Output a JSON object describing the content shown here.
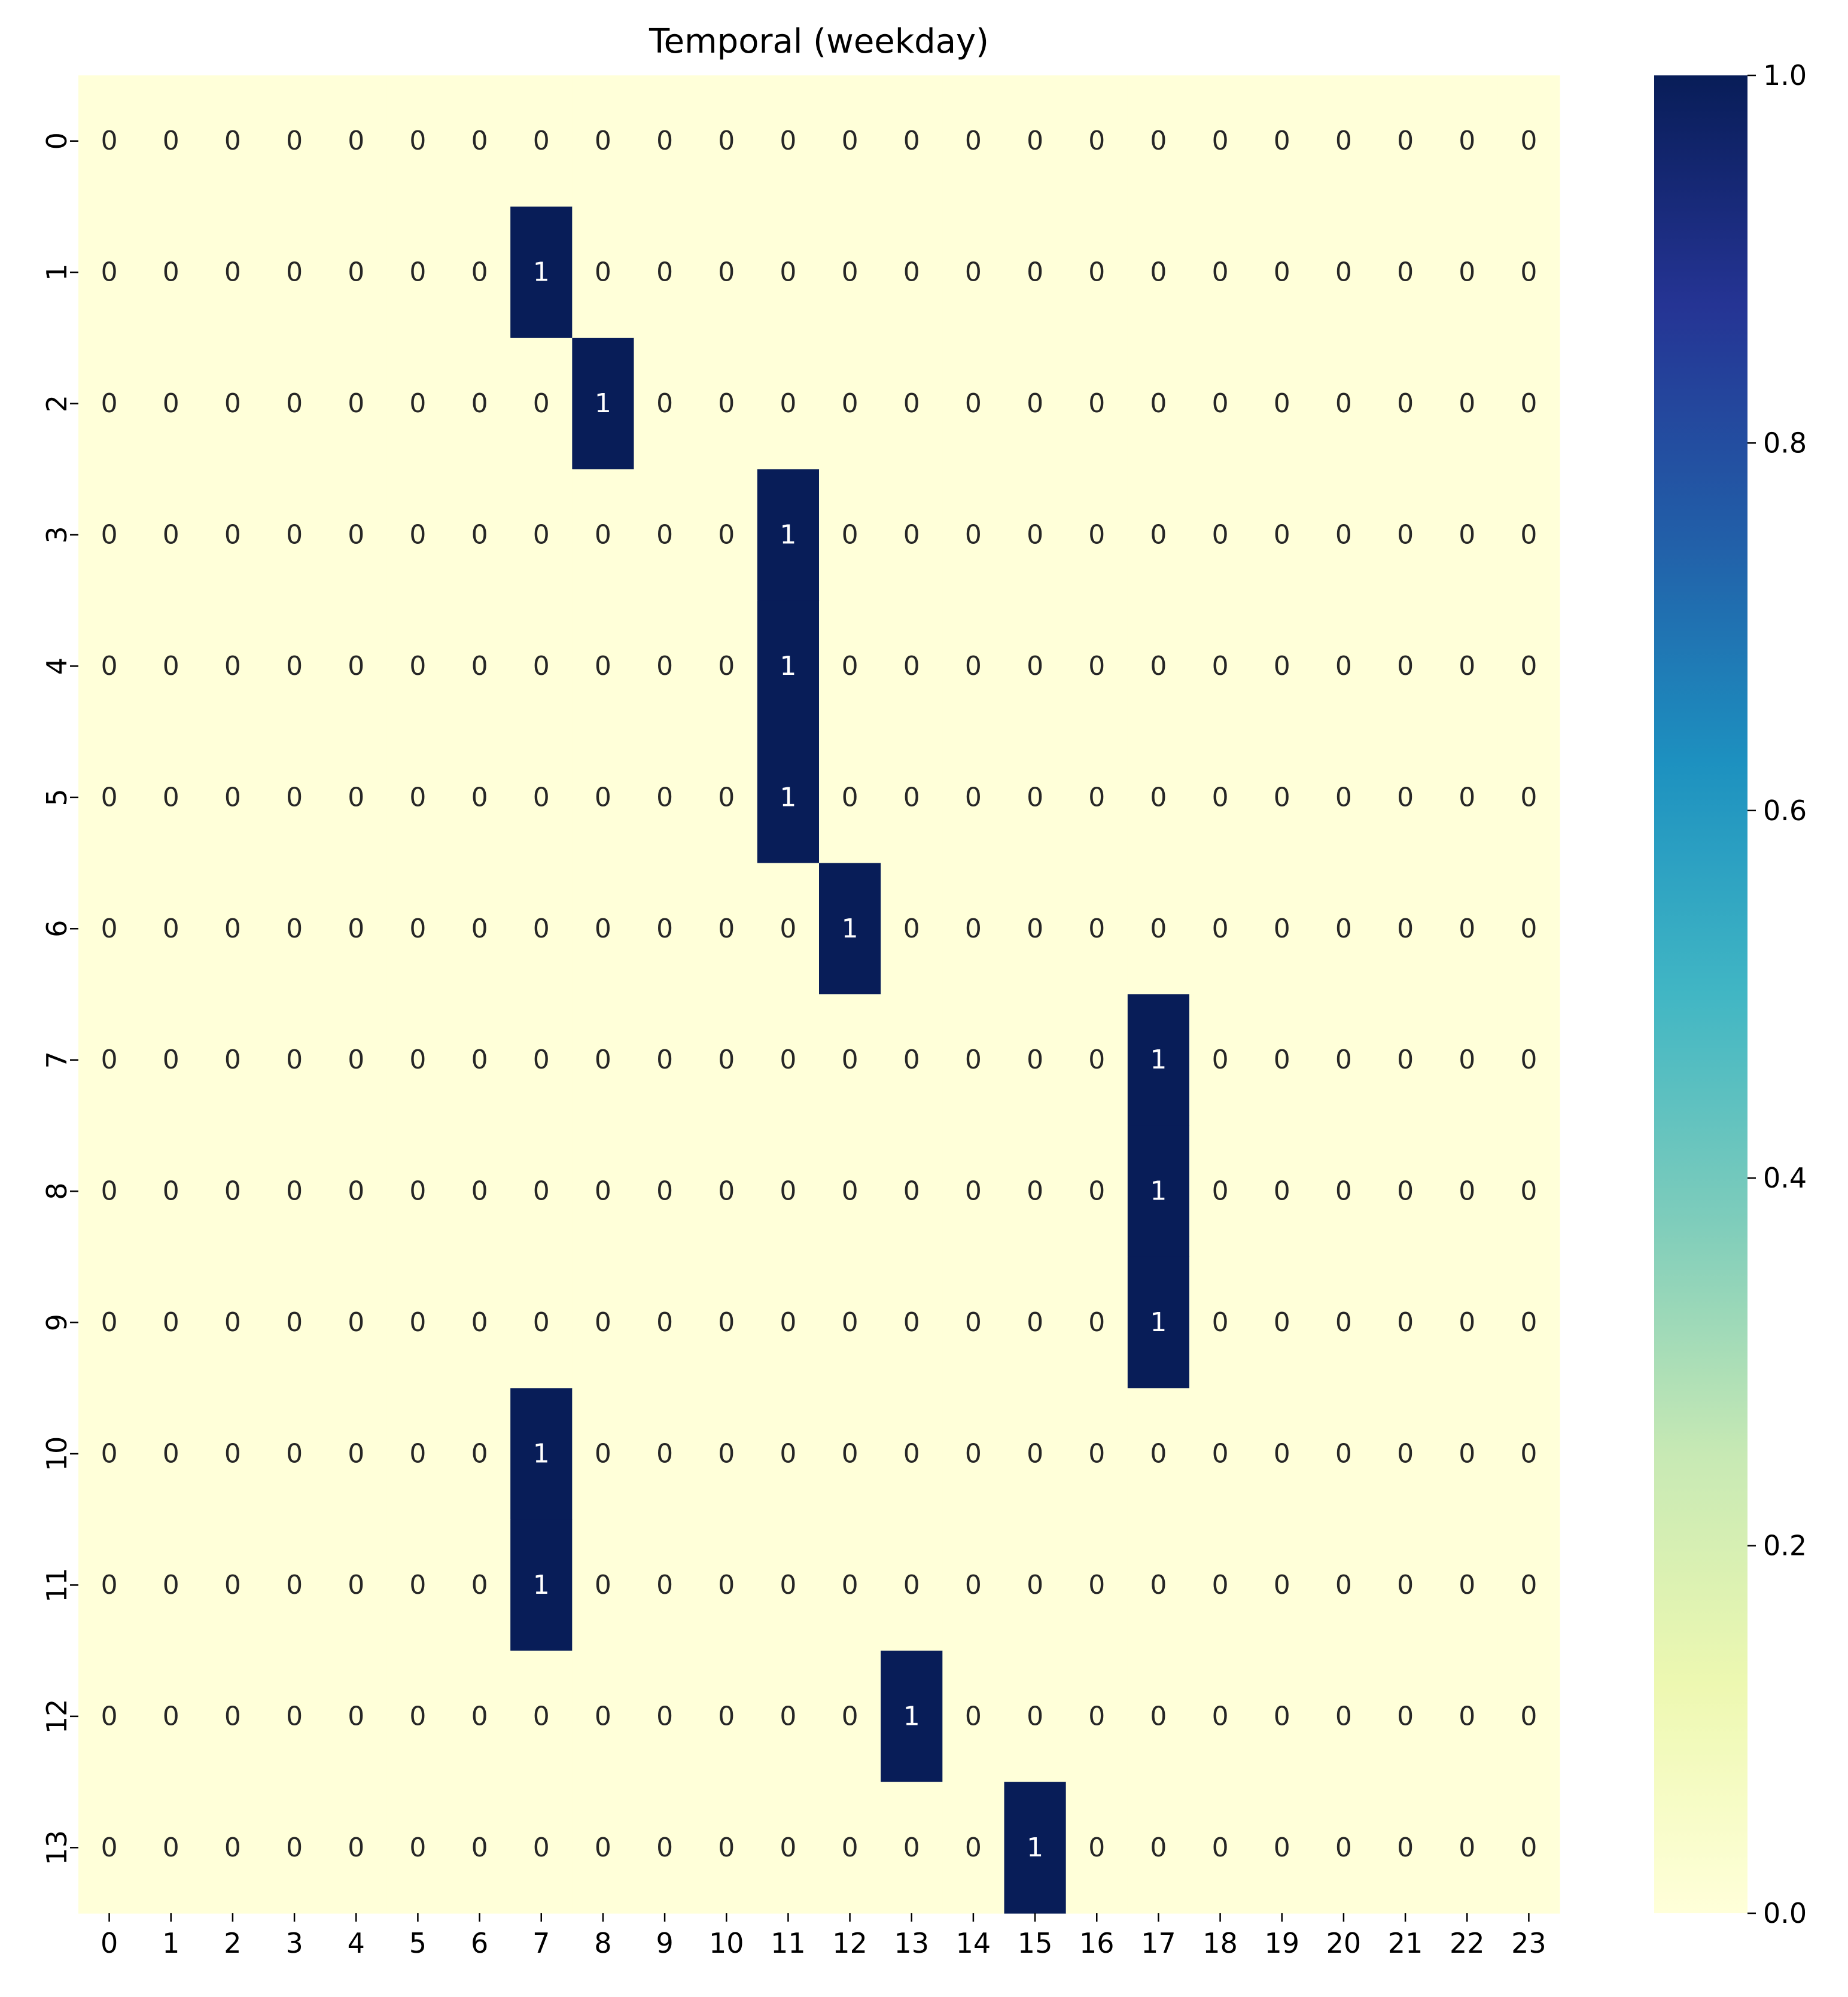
{
  "chart_data": {
    "type": "heatmap",
    "title": "Temporal (weekday)",
    "xlabel": "",
    "ylabel": "",
    "x_ticks": [
      "0",
      "1",
      "2",
      "3",
      "4",
      "5",
      "6",
      "7",
      "8",
      "9",
      "10",
      "11",
      "12",
      "13",
      "14",
      "15",
      "16",
      "17",
      "18",
      "19",
      "20",
      "21",
      "22",
      "23"
    ],
    "y_ticks": [
      "0",
      "1",
      "2",
      "3",
      "4",
      "5",
      "6",
      "7",
      "8",
      "9",
      "10",
      "11",
      "12",
      "13"
    ],
    "values": [
      [
        0,
        0,
        0,
        0,
        0,
        0,
        0,
        0,
        0,
        0,
        0,
        0,
        0,
        0,
        0,
        0,
        0,
        0,
        0,
        0,
        0,
        0,
        0,
        0
      ],
      [
        0,
        0,
        0,
        0,
        0,
        0,
        0,
        1,
        0,
        0,
        0,
        0,
        0,
        0,
        0,
        0,
        0,
        0,
        0,
        0,
        0,
        0,
        0,
        0
      ],
      [
        0,
        0,
        0,
        0,
        0,
        0,
        0,
        0,
        1,
        0,
        0,
        0,
        0,
        0,
        0,
        0,
        0,
        0,
        0,
        0,
        0,
        0,
        0,
        0
      ],
      [
        0,
        0,
        0,
        0,
        0,
        0,
        0,
        0,
        0,
        0,
        0,
        1,
        0,
        0,
        0,
        0,
        0,
        0,
        0,
        0,
        0,
        0,
        0,
        0
      ],
      [
        0,
        0,
        0,
        0,
        0,
        0,
        0,
        0,
        0,
        0,
        0,
        1,
        0,
        0,
        0,
        0,
        0,
        0,
        0,
        0,
        0,
        0,
        0,
        0
      ],
      [
        0,
        0,
        0,
        0,
        0,
        0,
        0,
        0,
        0,
        0,
        0,
        1,
        0,
        0,
        0,
        0,
        0,
        0,
        0,
        0,
        0,
        0,
        0,
        0
      ],
      [
        0,
        0,
        0,
        0,
        0,
        0,
        0,
        0,
        0,
        0,
        0,
        0,
        1,
        0,
        0,
        0,
        0,
        0,
        0,
        0,
        0,
        0,
        0,
        0
      ],
      [
        0,
        0,
        0,
        0,
        0,
        0,
        0,
        0,
        0,
        0,
        0,
        0,
        0,
        0,
        0,
        0,
        0,
        1,
        0,
        0,
        0,
        0,
        0,
        0
      ],
      [
        0,
        0,
        0,
        0,
        0,
        0,
        0,
        0,
        0,
        0,
        0,
        0,
        0,
        0,
        0,
        0,
        0,
        1,
        0,
        0,
        0,
        0,
        0,
        0
      ],
      [
        0,
        0,
        0,
        0,
        0,
        0,
        0,
        0,
        0,
        0,
        0,
        0,
        0,
        0,
        0,
        0,
        0,
        1,
        0,
        0,
        0,
        0,
        0,
        0
      ],
      [
        0,
        0,
        0,
        0,
        0,
        0,
        0,
        1,
        0,
        0,
        0,
        0,
        0,
        0,
        0,
        0,
        0,
        0,
        0,
        0,
        0,
        0,
        0,
        0
      ],
      [
        0,
        0,
        0,
        0,
        0,
        0,
        0,
        1,
        0,
        0,
        0,
        0,
        0,
        0,
        0,
        0,
        0,
        0,
        0,
        0,
        0,
        0,
        0,
        0
      ],
      [
        0,
        0,
        0,
        0,
        0,
        0,
        0,
        0,
        0,
        0,
        0,
        0,
        0,
        1,
        0,
        0,
        0,
        0,
        0,
        0,
        0,
        0,
        0,
        0
      ],
      [
        0,
        0,
        0,
        0,
        0,
        0,
        0,
        0,
        0,
        0,
        0,
        0,
        0,
        0,
        0,
        1,
        0,
        0,
        0,
        0,
        0,
        0,
        0,
        0
      ]
    ],
    "colormap": "YlGnBu",
    "colormap_stops": [
      "#ffffd9",
      "#edf8b1",
      "#c7e9b4",
      "#7fcdbb",
      "#41b6c4",
      "#1d91c0",
      "#225ea8",
      "#253494",
      "#081d58"
    ],
    "vmin": 0,
    "vmax": 1,
    "colorbar_ticks": [
      "0.0",
      "0.2",
      "0.4",
      "0.6",
      "0.8",
      "1.0"
    ],
    "colorbar_tick_values": [
      0,
      0.2,
      0.4,
      0.6,
      0.8,
      1.0
    ],
    "annotate": true,
    "grid": false
  }
}
